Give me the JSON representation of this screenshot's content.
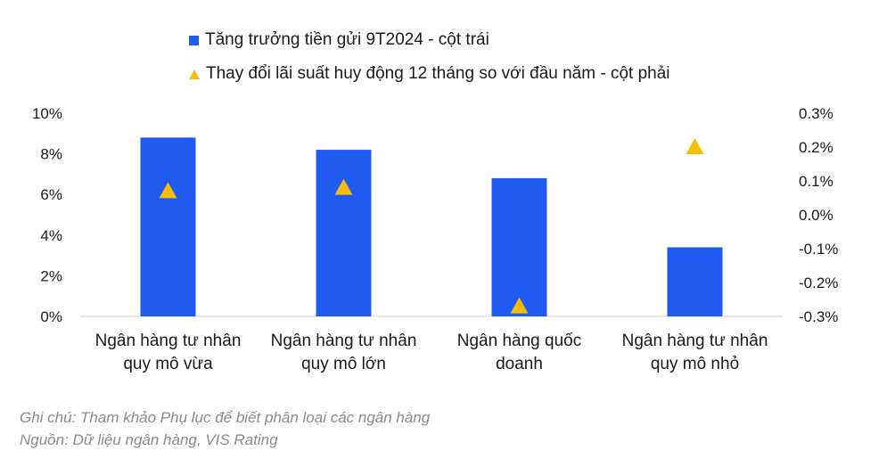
{
  "chart_data": {
    "type": "bar",
    "categories": [
      [
        "Ngân hàng tư nhân",
        "quy mô vừa"
      ],
      [
        "Ngân hàng tư nhân",
        "quy mô lớn"
      ],
      [
        "Ngân hàng quốc",
        "doanh"
      ],
      [
        "Ngân hàng tư nhân",
        "quy mô nhỏ"
      ]
    ],
    "series": [
      {
        "name": "Tăng trưởng tiền gửi 9T2024 - cột trái",
        "type": "bar",
        "axis": "left",
        "values": [
          8.8,
          8.2,
          6.8,
          3.4
        ],
        "color": "#1f5bf0"
      },
      {
        "name": "Thay đổi lãi suất huy động 12 tháng so với đầu năm - cột phải",
        "type": "scatter",
        "marker": "triangle",
        "axis": "right",
        "values": [
          0.07,
          0.08,
          -0.27,
          0.2
        ],
        "color": "#f5bd09"
      }
    ],
    "y_left": {
      "min": 0,
      "max": 10,
      "ticks": [
        "0%",
        "2%",
        "4%",
        "6%",
        "8%",
        "10%"
      ]
    },
    "y_right": {
      "min": -0.3,
      "max": 0.3,
      "ticks": [
        "-0.3%",
        "-0.2%",
        "-0.1%",
        "0.0%",
        "0.1%",
        "0.2%",
        "0.3%"
      ]
    },
    "grid": false,
    "legend_position": "top"
  },
  "notes": {
    "line1": "Ghi chú: Tham khảo Phụ lục để biết phân loại các ngân hàng",
    "line2": "Nguồn: Dữ liệu ngân hàng, VIS Rating"
  }
}
